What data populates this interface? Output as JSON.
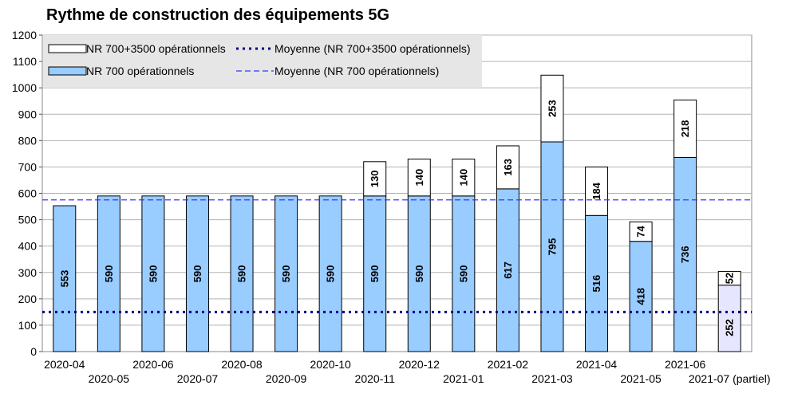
{
  "chart_data": {
    "type": "bar",
    "title": "Rythme de construction des équipements 5G",
    "stacked": true,
    "categories": [
      "2020-04",
      "2020-05",
      "2020-06",
      "2020-07",
      "2020-08",
      "2020-09",
      "2020-10",
      "2020-11",
      "2020-12",
      "2021-01",
      "2021-02",
      "2021-03",
      "2021-04",
      "2021-05",
      "2021-06",
      "2021-07 (partiel)"
    ],
    "series": [
      {
        "name": "NR 700 opérationnels",
        "color": "#99ccff",
        "partial_color": "#e6e6ff",
        "values": [
          553,
          590,
          590,
          590,
          590,
          590,
          590,
          590,
          590,
          590,
          617,
          795,
          516,
          418,
          736,
          252
        ]
      },
      {
        "name": "NR 700+3500 opérationnels",
        "color": "#ffffff",
        "values": [
          null,
          null,
          null,
          null,
          null,
          null,
          null,
          130,
          140,
          140,
          163,
          253,
          184,
          74,
          218,
          52
        ]
      }
    ],
    "reference_lines": [
      {
        "name": "Moyenne (NR 700+3500 opérationnels)",
        "value": 150,
        "style": "dotted",
        "color": "#000080"
      },
      {
        "name": "Moyenne (NR 700 opérationnels)",
        "value": 575,
        "style": "dashed",
        "color": "#3333ff"
      }
    ],
    "ylim": [
      0,
      1200
    ],
    "yticks": [
      0,
      100,
      200,
      300,
      400,
      500,
      600,
      700,
      800,
      900,
      1000,
      1100,
      1200
    ],
    "grid": true,
    "legend_position": "top-left",
    "xlabel": "",
    "ylabel": ""
  }
}
